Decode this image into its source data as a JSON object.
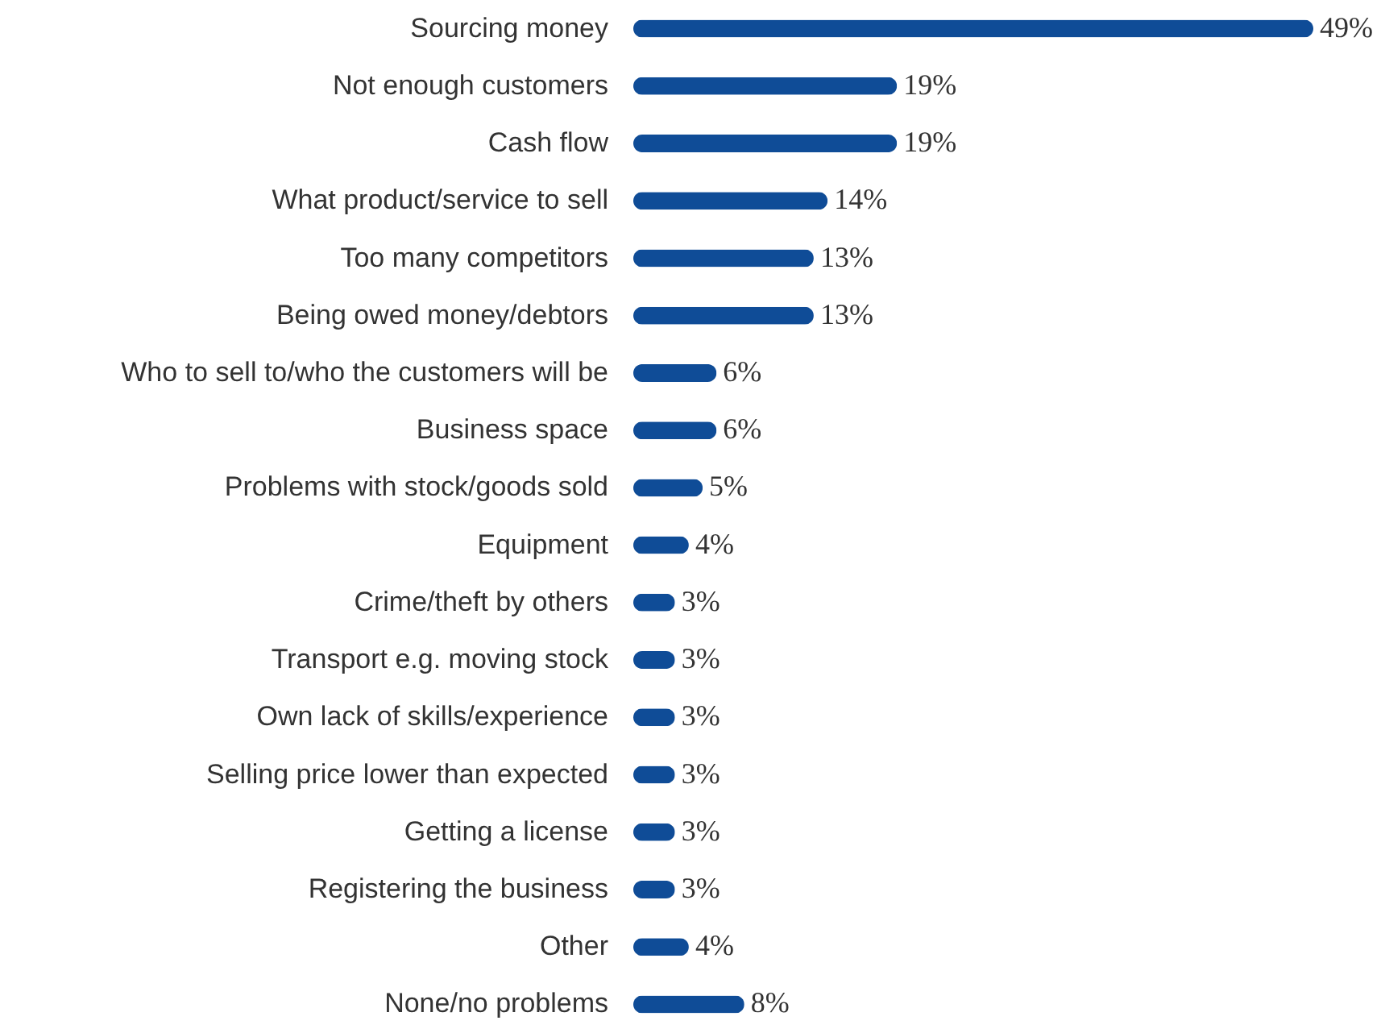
{
  "chart_data": {
    "type": "bar",
    "orientation": "horizontal",
    "color": "#0f4c97",
    "categories": [
      "Sourcing money",
      "Not enough customers",
      "Cash flow",
      "What product/service to sell",
      "Too many competitors",
      "Being owed money/debtors",
      "Who to sell to/who the customers will be",
      "Business space",
      "Problems with stock/goods sold",
      "Equipment",
      "Crime/theft by others",
      "Transport e.g. moving stock",
      "Own lack of skills/experience",
      "Selling price lower than expected",
      "Getting a license",
      "Registering the business",
      "Other",
      "None/no problems"
    ],
    "values": [
      49,
      19,
      19,
      14,
      13,
      13,
      6,
      6,
      5,
      4,
      3,
      3,
      3,
      3,
      3,
      3,
      4,
      8
    ],
    "value_labels": [
      "49%",
      "19%",
      "19%",
      "14%",
      "13%",
      "13%",
      "6%",
      "6%",
      "5%",
      "4%",
      "3%",
      "3%",
      "3%",
      "3%",
      "3%",
      "3%",
      "4%",
      "8%"
    ]
  }
}
